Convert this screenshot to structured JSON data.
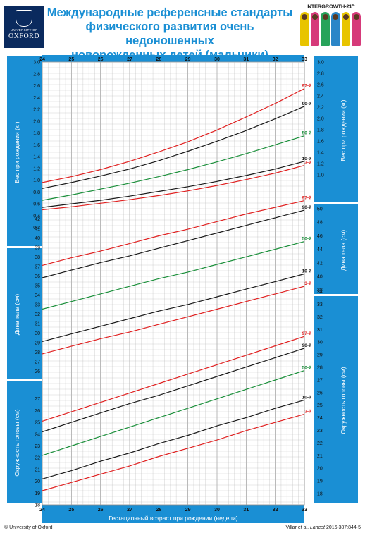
{
  "header": {
    "oxford_small": "UNIVERSITY OF",
    "oxford_big": "OXFORD",
    "title_lines": [
      "Международные референсные  стандарты",
      "физического развития очень недоношенных",
      "новорожденных детей (мальчики)"
    ],
    "intergrowth": "INTERGROWTH-21",
    "intergrowth_sup": "st"
  },
  "footer": {
    "copyright": "© University of Oxford",
    "citation_authors": "Villar et al. ",
    "citation_journal": "Lancet",
    "citation_ref": " 2016;387:844-5"
  },
  "colors": {
    "blue": "#1a8fd4",
    "red": "#e02020",
    "black": "#1a1a1a",
    "green": "#1a8f3a",
    "grid": "#bdbdbd"
  },
  "chart_data": [
    {
      "type": "line",
      "ylabel": "Вес при рождении (кг)",
      "x": [
        24,
        25,
        26,
        27,
        28,
        29,
        30,
        31,
        32,
        33
      ],
      "ylim": [
        0.1,
        3.0
      ],
      "left_ticks": [
        0.2,
        0.4,
        0.6,
        0.8,
        1.0,
        1.2,
        1.4,
        1.6,
        1.8,
        2.0,
        2.2,
        2.4,
        2.6,
        2.8,
        3.0
      ],
      "right_ticks": [
        1.0,
        1.2,
        1.4,
        1.6,
        1.8,
        2.0,
        2.2,
        2.4,
        2.6,
        2.8,
        3.0
      ],
      "series": [
        {
          "name": "97-й",
          "color": "red",
          "values": [
            0.96,
            1.06,
            1.18,
            1.32,
            1.48,
            1.65,
            1.85,
            2.07,
            2.3,
            2.55
          ]
        },
        {
          "name": "90-й",
          "color": "black",
          "values": [
            0.86,
            0.96,
            1.07,
            1.19,
            1.33,
            1.49,
            1.66,
            1.84,
            2.04,
            2.25
          ]
        },
        {
          "name": "50-й",
          "color": "green",
          "values": [
            0.66,
            0.75,
            0.85,
            0.95,
            1.06,
            1.18,
            1.31,
            1.45,
            1.6,
            1.75
          ]
        },
        {
          "name": "10-й",
          "color": "black",
          "values": [
            0.54,
            0.6,
            0.66,
            0.73,
            0.81,
            0.89,
            0.98,
            1.08,
            1.19,
            1.32
          ]
        },
        {
          "name": "3-й",
          "color": "red",
          "values": [
            0.5,
            0.55,
            0.61,
            0.67,
            0.74,
            0.82,
            0.91,
            1.01,
            1.12,
            1.25
          ]
        }
      ]
    },
    {
      "type": "line",
      "ylabel": "Дина тела (см)",
      "x": [
        24,
        25,
        26,
        27,
        28,
        29,
        30,
        31,
        32,
        33
      ],
      "ylim": [
        25.5,
        43.5
      ],
      "left_ticks": [
        26,
        27,
        28,
        29,
        30,
        31,
        32,
        33,
        34,
        35,
        36,
        37,
        38,
        39,
        40,
        41,
        42
      ],
      "right_ticks": [
        38,
        40,
        42,
        44,
        46,
        48,
        50
      ],
      "series": [
        {
          "name": "97-й",
          "color": "red",
          "values": [
            37.1,
            37.9,
            38.6,
            39.4,
            40.2,
            40.9,
            41.7,
            42.5,
            43.2,
            43.9
          ]
        },
        {
          "name": "90-й",
          "color": "black",
          "values": [
            35.8,
            36.6,
            37.4,
            38.1,
            38.9,
            39.7,
            40.5,
            41.3,
            42.1,
            42.9
          ]
        },
        {
          "name": "50-й",
          "color": "green",
          "values": [
            32.5,
            33.3,
            34.1,
            34.9,
            35.7,
            36.4,
            37.2,
            38.0,
            38.8,
            39.6
          ]
        },
        {
          "name": "10-й",
          "color": "black",
          "values": [
            29.1,
            29.9,
            30.7,
            31.5,
            32.3,
            33.0,
            33.8,
            34.6,
            35.4,
            36.2
          ]
        },
        {
          "name": "3-й",
          "color": "red",
          "values": [
            27.8,
            28.6,
            29.4,
            30.1,
            30.9,
            31.7,
            32.5,
            33.3,
            34.1,
            34.9
          ]
        }
      ]
    },
    {
      "type": "line",
      "ylabel": "Окружность головы (см)",
      "xlabel": "Гестационный возраст при рождении (недели)",
      "x": [
        24,
        25,
        26,
        27,
        28,
        29,
        30,
        31,
        32,
        33
      ],
      "ylim": [
        18,
        28
      ],
      "left_ticks": [
        18,
        19,
        20,
        21,
        22,
        23,
        24,
        25,
        26,
        27
      ],
      "right_ticks": [
        18,
        19,
        20,
        21,
        22,
        23,
        24,
        25,
        26,
        27,
        28,
        29,
        30,
        31,
        32,
        33,
        34
      ],
      "series": [
        {
          "name": "97-й",
          "color": "red",
          "values": [
            25.1,
            25.9,
            26.7,
            27.5,
            28.3,
            29.1,
            29.9,
            30.7,
            31.5,
            32.3
          ]
        },
        {
          "name": "90-й",
          "color": "black",
          "values": [
            24.2,
            25.0,
            25.8,
            26.6,
            27.3,
            28.1,
            28.9,
            29.7,
            30.5,
            31.3
          ]
        },
        {
          "name": "50-й",
          "color": "green",
          "values": [
            22.2,
            23.0,
            23.8,
            24.6,
            25.4,
            26.2,
            27.0,
            27.8,
            28.6,
            29.4
          ]
        },
        {
          "name": "10-й",
          "color": "black",
          "values": [
            20.2,
            20.9,
            21.7,
            22.4,
            23.2,
            23.9,
            24.7,
            25.4,
            26.2,
            26.9
          ]
        },
        {
          "name": "3-й",
          "color": "red",
          "values": [
            19.2,
            19.9,
            20.6,
            21.3,
            22.1,
            22.8,
            23.5,
            24.3,
            25.0,
            25.7
          ]
        }
      ]
    }
  ],
  "x_axis": {
    "ticks": [
      24,
      25,
      26,
      27,
      28,
      29,
      30,
      31,
      32,
      33
    ],
    "label": "Гестационный возраст при рождении (недели)"
  }
}
